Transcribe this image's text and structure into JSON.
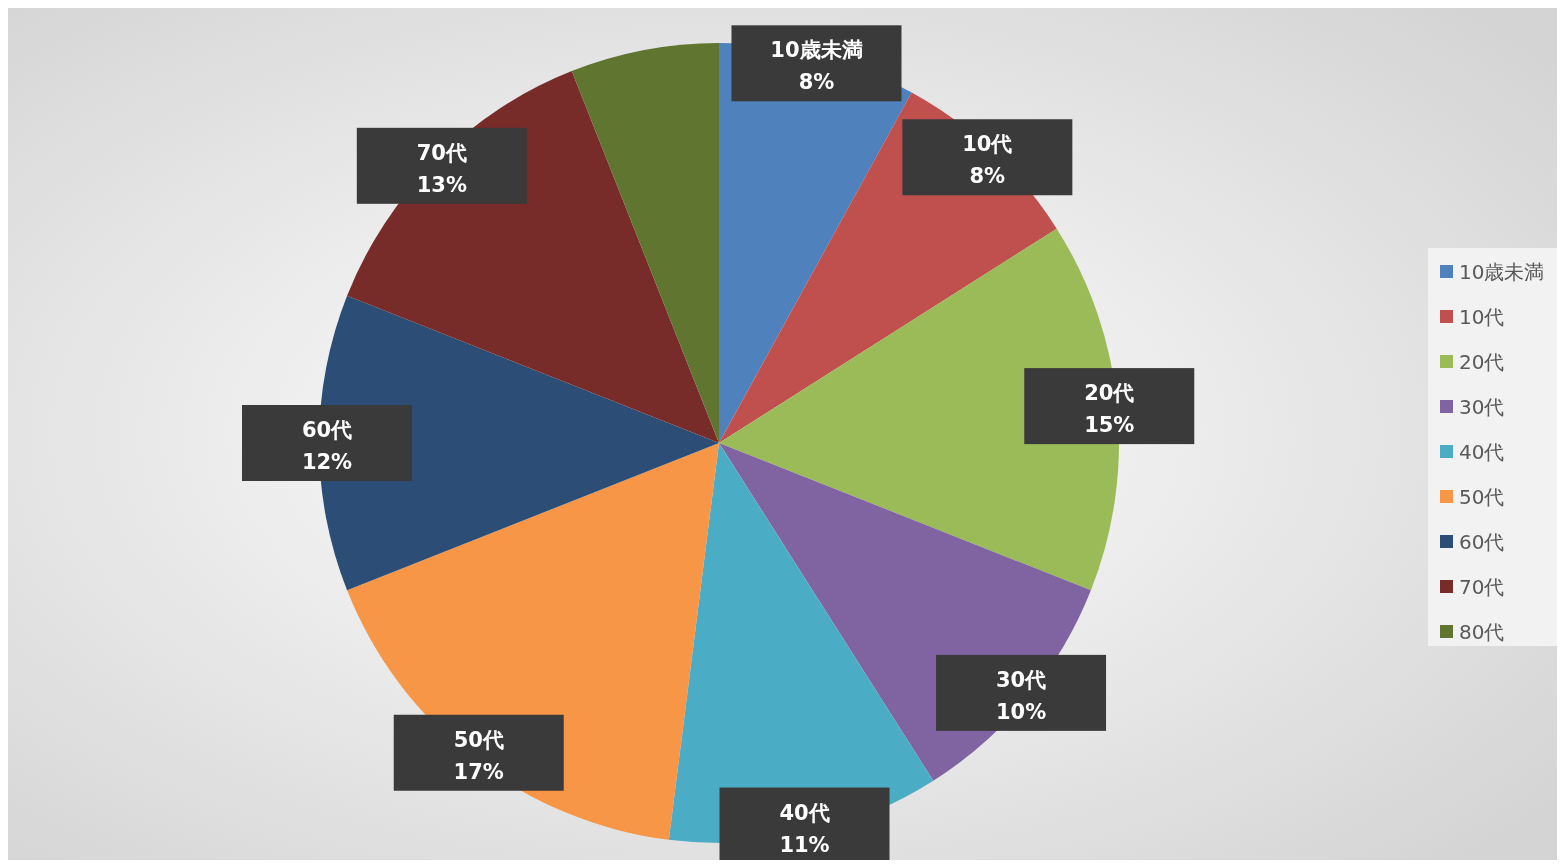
{
  "chart_data": {
    "type": "pie",
    "categories": [
      "10歳未満",
      "10代",
      "20代",
      "30代",
      "40代",
      "50代",
      "60代",
      "70代",
      "80代"
    ],
    "values": [
      8,
      8,
      15,
      10,
      11,
      17,
      12,
      13,
      6
    ],
    "value_labels": [
      "8%",
      "8%",
      "15%",
      "10%",
      "11%",
      "17%",
      "12%",
      "13%",
      null
    ],
    "colors": [
      "#4f81bd",
      "#c0504d",
      "#9bbb59",
      "#8064a2",
      "#4bacc6",
      "#f79646",
      "#2c4d75",
      "#772c2a",
      "#5f7530"
    ],
    "legend": "right"
  }
}
